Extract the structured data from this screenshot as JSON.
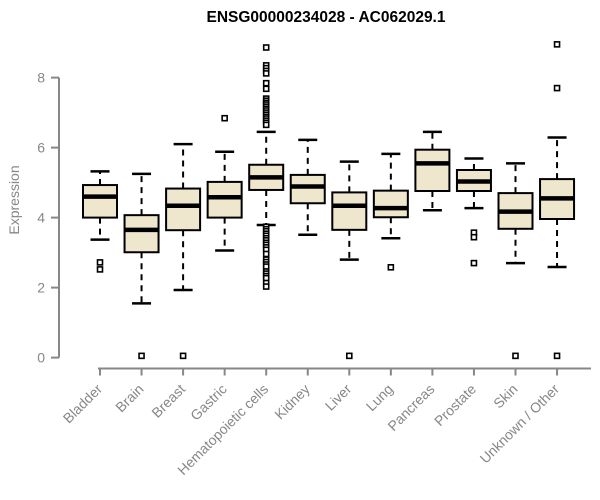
{
  "chart_data": {
    "type": "boxplot",
    "title": "ENSG00000234028 - AC062029.1",
    "ylabel": "Expression",
    "xlabel": "",
    "ylim": [
      0,
      8
    ],
    "yticks": [
      0,
      2,
      4,
      6,
      8
    ],
    "grid": "off",
    "legend": "none",
    "categories": [
      "Bladder",
      "Brain",
      "Breast",
      "Gastric",
      "Hematopoietic cells",
      "Kidney",
      "Liver",
      "Lung",
      "Pancreas",
      "Prostate",
      "Skin",
      "Unknown / Other"
    ],
    "series": [
      {
        "category": "Bladder",
        "whisker_low": 3.37,
        "q1": 4.0,
        "median": 4.6,
        "q3": 4.93,
        "whisker_high": 5.32,
        "outliers": [
          2.72,
          2.52
        ]
      },
      {
        "category": "Brain",
        "whisker_low": 1.55,
        "q1": 3.01,
        "median": 3.65,
        "q3": 4.07,
        "whisker_high": 5.25,
        "outliers": [
          0.05
        ]
      },
      {
        "category": "Breast",
        "whisker_low": 1.93,
        "q1": 3.64,
        "median": 4.34,
        "q3": 4.83,
        "whisker_high": 6.1,
        "outliers": [
          0.05
        ]
      },
      {
        "category": "Gastric",
        "whisker_low": 3.06,
        "q1": 4.0,
        "median": 4.58,
        "q3": 5.02,
        "whisker_high": 5.88,
        "outliers": [
          6.84
        ]
      },
      {
        "category": "Hematopoietic cells",
        "whisker_low": 3.79,
        "q1": 4.79,
        "median": 5.15,
        "q3": 5.51,
        "whisker_high": 6.45,
        "outliers": [
          8.86,
          8.35,
          8.27,
          8.19,
          8.12,
          7.84,
          7.68,
          7.4,
          7.34,
          7.28,
          7.23,
          7.17,
          7.11,
          7.06,
          7.0,
          6.94,
          6.88,
          6.83,
          6.77,
          6.71,
          6.65,
          3.74,
          3.67,
          3.61,
          3.54,
          3.48,
          3.41,
          3.35,
          3.28,
          3.22,
          3.15,
          3.08,
          2.96,
          2.8,
          2.73,
          2.66,
          2.6,
          2.46,
          2.4,
          2.33,
          2.27,
          2.13,
          2.03
        ]
      },
      {
        "category": "Kidney",
        "whisker_low": 3.51,
        "q1": 4.41,
        "median": 4.89,
        "q3": 5.22,
        "whisker_high": 6.22,
        "outliers": []
      },
      {
        "category": "Liver",
        "whisker_low": 2.8,
        "q1": 3.65,
        "median": 4.34,
        "q3": 4.72,
        "whisker_high": 5.6,
        "outliers": [
          0.05
        ]
      },
      {
        "category": "Lung",
        "whisker_low": 3.41,
        "q1": 4.01,
        "median": 4.27,
        "q3": 4.77,
        "whisker_high": 5.82,
        "outliers": [
          2.58
        ]
      },
      {
        "category": "Pancreas",
        "whisker_low": 4.21,
        "q1": 4.76,
        "median": 5.55,
        "q3": 5.94,
        "whisker_high": 6.45,
        "outliers": []
      },
      {
        "category": "Prostate",
        "whisker_low": 4.27,
        "q1": 4.76,
        "median": 5.03,
        "q3": 5.36,
        "whisker_high": 5.69,
        "outliers": [
          3.57,
          3.44,
          2.7
        ]
      },
      {
        "category": "Skin",
        "whisker_low": 2.7,
        "q1": 3.68,
        "median": 4.17,
        "q3": 4.7,
        "whisker_high": 5.55,
        "outliers": [
          0.05
        ]
      },
      {
        "category": "Unknown / Other",
        "whisker_low": 2.59,
        "q1": 3.96,
        "median": 4.55,
        "q3": 5.1,
        "whisker_high": 6.29,
        "outliers": [
          8.95,
          7.7,
          0.05
        ]
      }
    ],
    "colors": {
      "box_fill": "#EEE6CD",
      "box_border": "#000000",
      "median": "#000000",
      "whisker": "#000000",
      "outlier": "#000000",
      "axis": "#878787",
      "tick_text": "#878787",
      "title_text": "#000000"
    }
  }
}
